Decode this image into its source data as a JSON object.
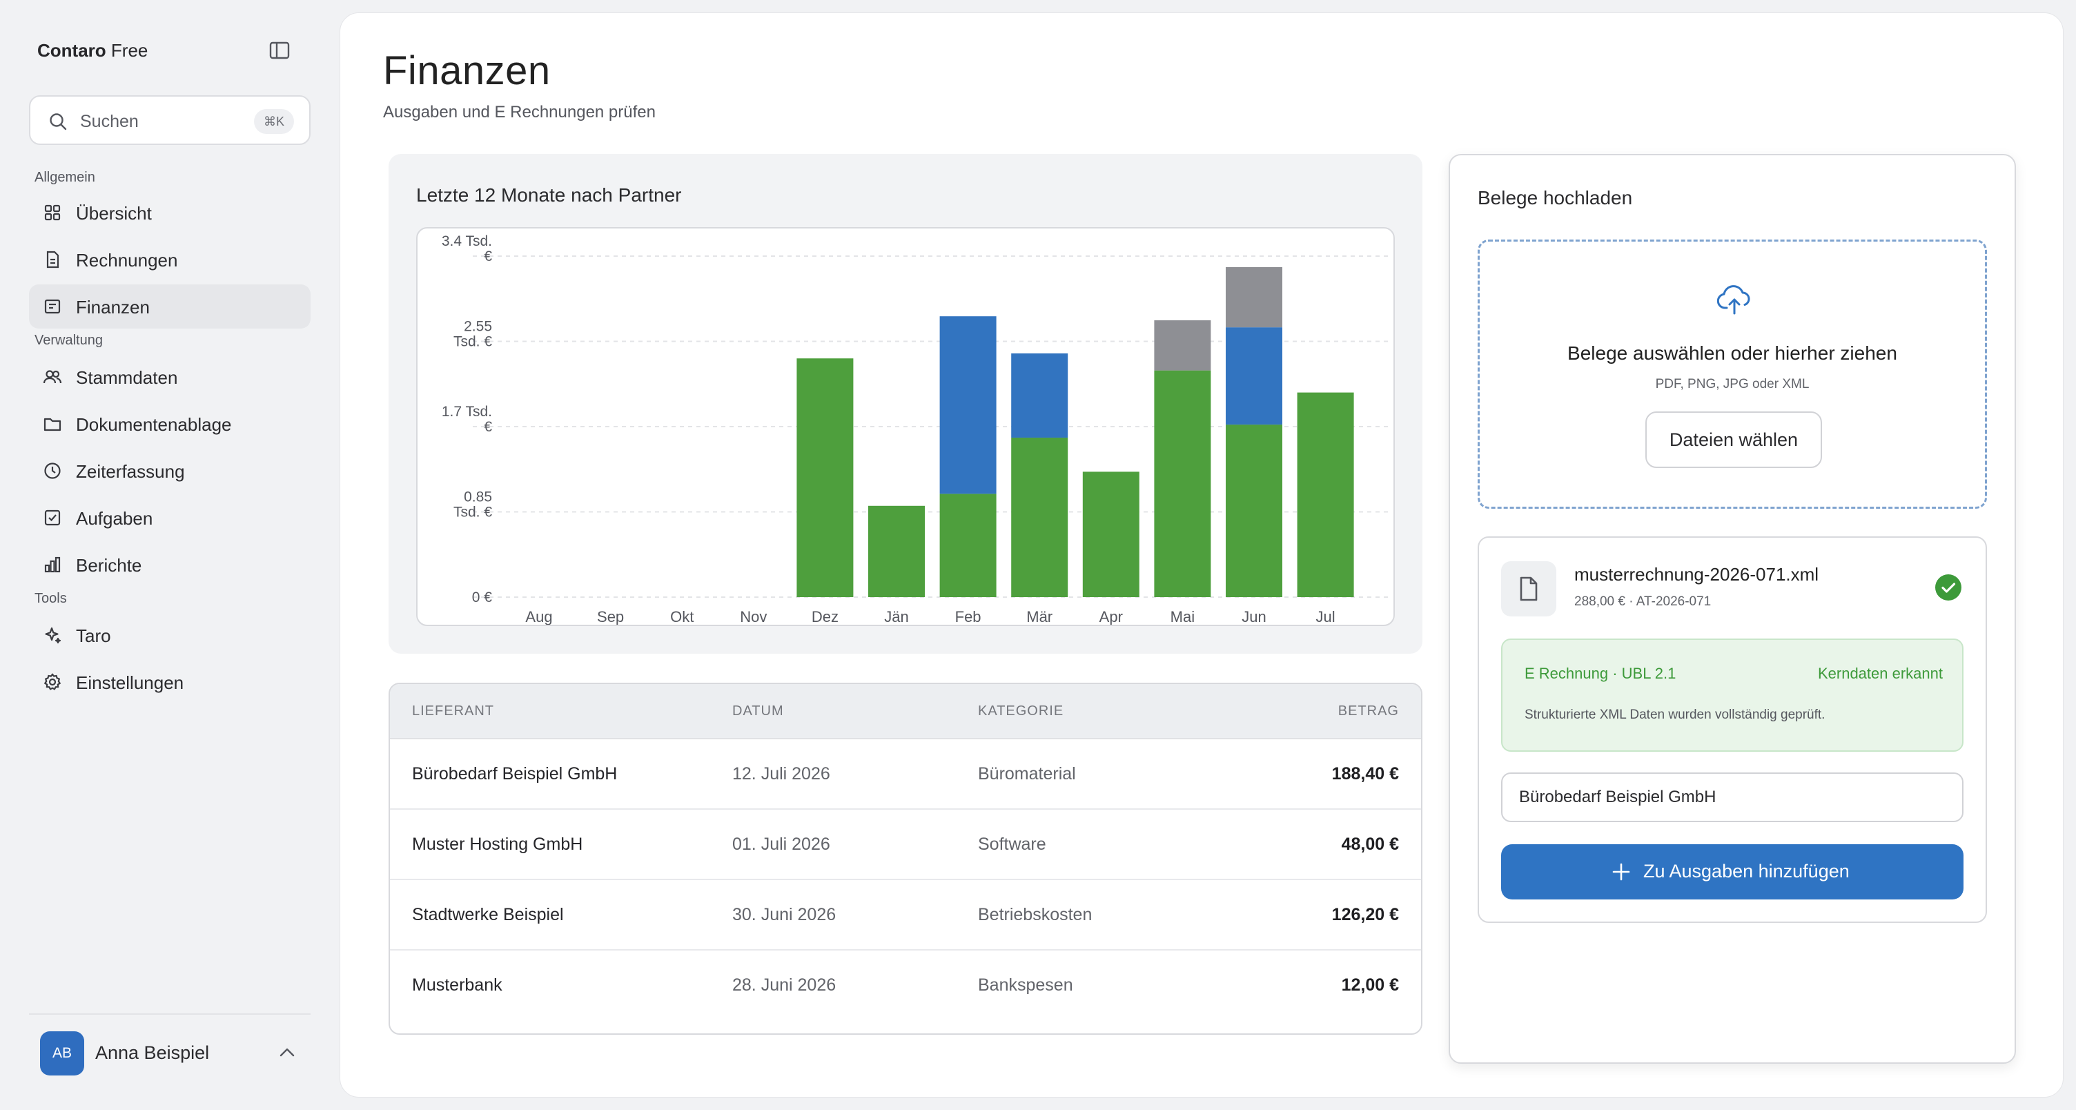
{
  "brand": {
    "name": "Contaro",
    "plan": "Free"
  },
  "search": {
    "placeholder": "Suchen",
    "shortcut": "⌘K"
  },
  "nav": {
    "groups": [
      {
        "label": "Allgemein",
        "items": [
          {
            "label": "Übersicht",
            "icon": "grid-icon"
          },
          {
            "label": "Rechnungen",
            "icon": "document-icon"
          },
          {
            "label": "Finanzen",
            "icon": "receipt-icon",
            "active": true
          }
        ]
      },
      {
        "label": "Verwaltung",
        "items": [
          {
            "label": "Stammdaten",
            "icon": "users-icon"
          },
          {
            "label": "Dokumentenablage",
            "icon": "folder-icon"
          },
          {
            "label": "Zeiterfassung",
            "icon": "clock-icon"
          },
          {
            "label": "Aufgaben",
            "icon": "checkbox-icon"
          },
          {
            "label": "Berichte",
            "icon": "bar-chart-icon"
          }
        ]
      },
      {
        "label": "Tools",
        "items": [
          {
            "label": "Taro",
            "icon": "sparkle-icon"
          },
          {
            "label": "Einstellungen",
            "icon": "gear-icon"
          }
        ]
      }
    ]
  },
  "user": {
    "initials": "AB",
    "name": "Anna Beispiel"
  },
  "page": {
    "title": "Finanzen",
    "subtitle": "Ausgaben und E Rechnungen prüfen"
  },
  "chart_data": {
    "type": "bar",
    "stacked": true,
    "title": "Letzte 12 Monate nach Partner",
    "categories": [
      "Aug",
      "Sep",
      "Okt",
      "Nov",
      "Dez",
      "Jän",
      "Feb",
      "Mär",
      "Apr",
      "Mai",
      "Jun",
      "Jul"
    ],
    "series": [
      {
        "color": "#4e9f3d",
        "values": [
          0,
          0,
          0,
          0,
          2380,
          910,
          1030,
          1590,
          1250,
          2260,
          1720,
          2040
        ]
      },
      {
        "color": "#3274c0",
        "values": [
          0,
          0,
          0,
          0,
          0,
          0,
          1770,
          840,
          0,
          0,
          970,
          0
        ]
      },
      {
        "color": "#8e8f94",
        "values": [
          0,
          0,
          0,
          0,
          0,
          0,
          0,
          0,
          0,
          500,
          600,
          0
        ]
      }
    ],
    "ylim": [
      0,
      3400
    ],
    "yticks": [
      {
        "value": 3400,
        "label": [
          "3.4 Tsd.",
          "€"
        ]
      },
      {
        "value": 2550,
        "label": [
          "2.55",
          "Tsd. €"
        ]
      },
      {
        "value": 1700,
        "label": [
          "1.7 Tsd.",
          "€"
        ]
      },
      {
        "value": 850,
        "label": [
          "0.85",
          "Tsd. €"
        ]
      },
      {
        "value": 0,
        "label": [
          "0 €"
        ]
      }
    ],
    "grid": true
  },
  "table": {
    "columns": [
      "LIEFERANT",
      "DATUM",
      "KATEGORIE",
      "BETRAG"
    ],
    "rows": [
      {
        "lieferant": "Bürobedarf Beispiel GmbH",
        "datum": "12. Juli 2026",
        "kategorie": "Büromaterial",
        "betrag": "188,40 €"
      },
      {
        "lieferant": "Muster Hosting GmbH",
        "datum": "01. Juli 2026",
        "kategorie": "Software",
        "betrag": "48,00 €"
      },
      {
        "lieferant": "Stadtwerke Beispiel",
        "datum": "30. Juni 2026",
        "kategorie": "Betriebskosten",
        "betrag": "126,20 €"
      },
      {
        "lieferant": "Musterbank",
        "datum": "28. Juni 2026",
        "kategorie": "Bankspesen",
        "betrag": "12,00 €"
      }
    ]
  },
  "upload": {
    "title": "Belege hochladen",
    "dropzone_title": "Belege auswählen oder hierher ziehen",
    "dropzone_formats": "PDF, PNG, JPG oder XML",
    "choose_button": "Dateien wählen",
    "file": {
      "name": "musterrechnung-2026-071.xml",
      "meta": "288,00 € · AT-2026-071",
      "einvoice_type": "E Rechnung · UBL 2.1",
      "einvoice_status": "Kerndaten erkannt",
      "einvoice_desc": "Strukturierte XML Daten wurden vollständig geprüft.",
      "vendor_value": "Bürobedarf Beispiel GmbH",
      "add_button": "Zu Ausgaben hinzufügen"
    }
  }
}
